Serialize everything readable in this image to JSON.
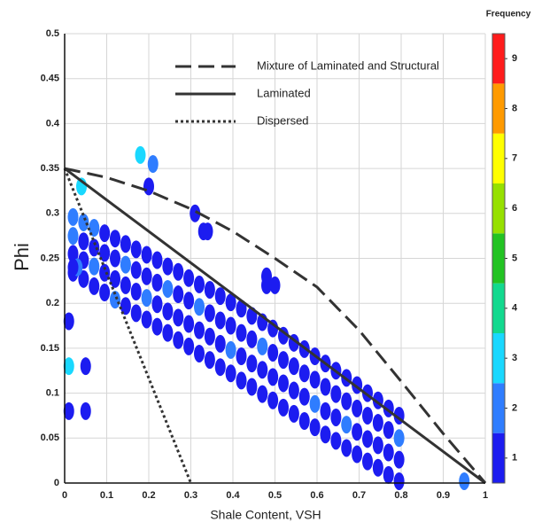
{
  "chart_data": {
    "type": "scatter",
    "xlabel": "Shale Content, VSH",
    "ylabel": "Phi",
    "xlim": [
      0,
      1
    ],
    "ylim": [
      0,
      0.5
    ],
    "xticks": [
      0,
      0.1,
      0.2,
      0.3,
      0.4,
      0.5,
      0.6,
      0.7,
      0.8,
      0.9,
      1
    ],
    "yticks": [
      0,
      0.05,
      0.1,
      0.15,
      0.2,
      0.25,
      0.3,
      0.35,
      0.4,
      0.45,
      0.5
    ],
    "grid": true,
    "legend": "top-right",
    "colorbar": {
      "title": "Frequency",
      "clim": [
        0.5,
        9.5
      ],
      "ticks": [
        1,
        2,
        3,
        4,
        5,
        6,
        7,
        8,
        9
      ],
      "colors": [
        "#1c1cf0",
        "#2f7dff",
        "#19d8ff",
        "#12d98e",
        "#22c322",
        "#96e000",
        "#ffff00",
        "#ff9a00",
        "#ff1c1c"
      ]
    },
    "lines": [
      {
        "name": "Mixture of Laminated and Structural",
        "style": "dashed",
        "color": "#333333",
        "x": [
          0,
          0.1,
          0.2,
          0.3,
          0.4,
          0.5,
          0.6,
          0.7,
          0.8,
          0.9,
          1
        ],
        "y": [
          0.35,
          0.34,
          0.325,
          0.305,
          0.28,
          0.25,
          0.218,
          0.17,
          0.113,
          0.055,
          0
        ]
      },
      {
        "name": "Laminated",
        "style": "solid",
        "color": "#333333",
        "x": [
          0,
          1
        ],
        "y": [
          0.35,
          0
        ]
      },
      {
        "name": "Dispersed",
        "style": "dotted",
        "color": "#333333",
        "x": [
          0,
          0.3
        ],
        "y": [
          0.35,
          0
        ]
      }
    ],
    "points": {
      "x": [
        0.02,
        0.02,
        0.02,
        0.02,
        0.045,
        0.045,
        0.045,
        0.045,
        0.07,
        0.07,
        0.07,
        0.07,
        0.095,
        0.095,
        0.095,
        0.095,
        0.12,
        0.12,
        0.12,
        0.12,
        0.145,
        0.145,
        0.145,
        0.145,
        0.17,
        0.17,
        0.17,
        0.17,
        0.195,
        0.195,
        0.195,
        0.195,
        0.22,
        0.22,
        0.22,
        0.22,
        0.245,
        0.245,
        0.245,
        0.245,
        0.27,
        0.27,
        0.27,
        0.27,
        0.295,
        0.295,
        0.295,
        0.295,
        0.32,
        0.32,
        0.32,
        0.32,
        0.345,
        0.345,
        0.345,
        0.345,
        0.37,
        0.37,
        0.37,
        0.37,
        0.395,
        0.395,
        0.395,
        0.395,
        0.42,
        0.42,
        0.42,
        0.42,
        0.445,
        0.445,
        0.445,
        0.445,
        0.47,
        0.47,
        0.47,
        0.47,
        0.495,
        0.495,
        0.495,
        0.495,
        0.52,
        0.52,
        0.52,
        0.52,
        0.545,
        0.545,
        0.545,
        0.545,
        0.57,
        0.57,
        0.57,
        0.57,
        0.595,
        0.595,
        0.595,
        0.595,
        0.62,
        0.62,
        0.62,
        0.62,
        0.645,
        0.645,
        0.645,
        0.645,
        0.67,
        0.67,
        0.67,
        0.67,
        0.695,
        0.695,
        0.695,
        0.695,
        0.72,
        0.72,
        0.72,
        0.72,
        0.745,
        0.745,
        0.745,
        0.745,
        0.77,
        0.77,
        0.77,
        0.77,
        0.795,
        0.795,
        0.795,
        0.795,
        0.18,
        0.21,
        0.2,
        0.04,
        0.03,
        0.31,
        0.33,
        0.34,
        0.48,
        0.48,
        0.5,
        0.01,
        0.05,
        0.05,
        0.01,
        0.01,
        0.95,
        0.02
      ],
      "y": [
        0.234,
        0.255,
        0.275,
        0.296,
        0.227,
        0.248,
        0.269,
        0.29,
        0.219,
        0.241,
        0.262,
        0.284,
        0.212,
        0.234,
        0.256,
        0.278,
        0.204,
        0.227,
        0.25,
        0.272,
        0.197,
        0.22,
        0.243,
        0.266,
        0.189,
        0.213,
        0.237,
        0.26,
        0.182,
        0.206,
        0.23,
        0.254,
        0.174,
        0.199,
        0.223,
        0.248,
        0.167,
        0.191,
        0.216,
        0.241,
        0.159,
        0.184,
        0.21,
        0.235,
        0.152,
        0.177,
        0.203,
        0.228,
        0.144,
        0.17,
        0.196,
        0.221,
        0.137,
        0.163,
        0.189,
        0.215,
        0.129,
        0.155,
        0.181,
        0.208,
        0.122,
        0.148,
        0.175,
        0.201,
        0.114,
        0.141,
        0.167,
        0.194,
        0.107,
        0.133,
        0.16,
        0.186,
        0.099,
        0.126,
        0.152,
        0.179,
        0.092,
        0.118,
        0.145,
        0.172,
        0.084,
        0.111,
        0.137,
        0.164,
        0.077,
        0.103,
        0.13,
        0.156,
        0.069,
        0.096,
        0.122,
        0.149,
        0.062,
        0.088,
        0.115,
        0.141,
        0.054,
        0.08,
        0.107,
        0.133,
        0.047,
        0.073,
        0.099,
        0.125,
        0.039,
        0.065,
        0.091,
        0.117,
        0.032,
        0.057,
        0.083,
        0.109,
        0.024,
        0.049,
        0.075,
        0.1,
        0.017,
        0.042,
        0.067,
        0.092,
        0.009,
        0.034,
        0.059,
        0.083,
        0.002,
        0.026,
        0.05,
        0.075,
        0.365,
        0.355,
        0.33,
        0.33,
        0.24,
        0.3,
        0.28,
        0.28,
        0.23,
        0.22,
        0.22,
        0.18,
        0.13,
        0.08,
        0.08,
        0.13,
        0.002,
        0.24
      ],
      "frequency": [
        1,
        1,
        2,
        2,
        1,
        1,
        1,
        2,
        1,
        2,
        1,
        2,
        1,
        1,
        1,
        1,
        2,
        1,
        1,
        1,
        1,
        1,
        2,
        1,
        1,
        1,
        1,
        1,
        1,
        2,
        1,
        1,
        1,
        1,
        1,
        1,
        1,
        1,
        2,
        1,
        1,
        1,
        1,
        1,
        1,
        1,
        1,
        1,
        1,
        1,
        2,
        1,
        1,
        1,
        1,
        1,
        1,
        1,
        1,
        1,
        1,
        2,
        1,
        1,
        1,
        1,
        1,
        1,
        1,
        1,
        1,
        1,
        1,
        1,
        2,
        1,
        1,
        1,
        1,
        1,
        1,
        1,
        1,
        1,
        1,
        1,
        1,
        1,
        1,
        1,
        1,
        1,
        1,
        2,
        1,
        1,
        1,
        1,
        1,
        1,
        1,
        1,
        1,
        1,
        1,
        2,
        1,
        1,
        1,
        1,
        1,
        1,
        1,
        1,
        1,
        1,
        1,
        1,
        1,
        1,
        1,
        1,
        1,
        1,
        1,
        1,
        2,
        1,
        3,
        2,
        1,
        3,
        2,
        1,
        1,
        1,
        1,
        1,
        1,
        1,
        1,
        1,
        1,
        3,
        2,
        1
      ]
    }
  }
}
